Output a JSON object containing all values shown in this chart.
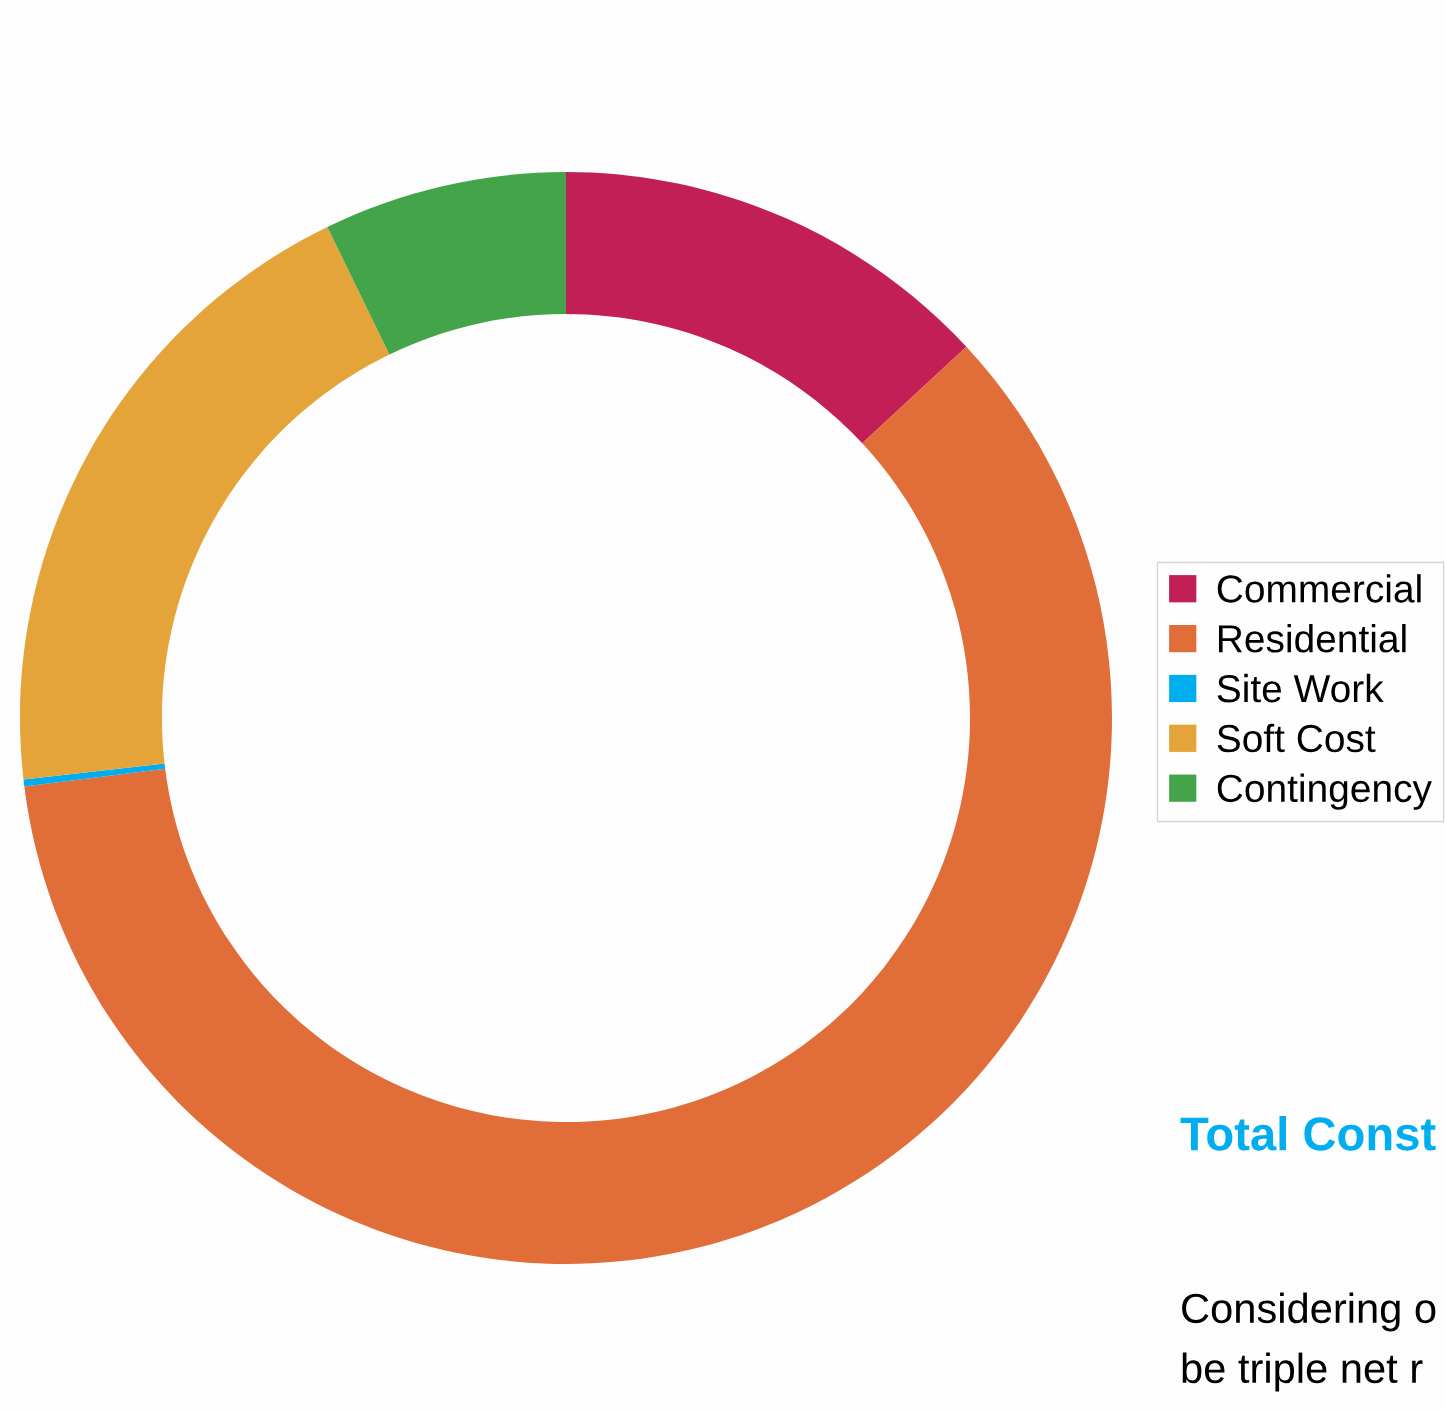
{
  "chart_data": {
    "type": "donut",
    "categories": [
      "Commercial",
      "Residential",
      "Site Work",
      "Soft Cost",
      "Contingency"
    ],
    "values": [
      13.1,
      59.9,
      0.2,
      19.6,
      7.2
    ],
    "colors": [
      "#c21f56",
      "#e16d38",
      "#00aeef",
      "#e5a43a",
      "#44a44a"
    ],
    "legend": "right",
    "annotations": [
      "Total Const",
      "Considering o",
      "be triple net r"
    ]
  }
}
